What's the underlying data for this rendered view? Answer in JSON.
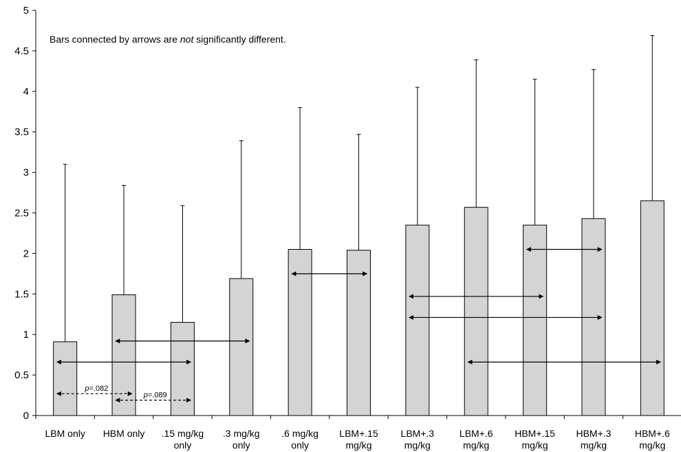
{
  "chart_data": {
    "type": "bar",
    "title": "",
    "xlabel": "",
    "ylabel": "",
    "ylim": [
      0,
      5
    ],
    "yticks": [
      "0",
      "0.5",
      "1",
      "1.5",
      "2",
      "2.5",
      "3",
      "3.5",
      "4",
      "4.5",
      "5"
    ],
    "grid": false,
    "legend": "none",
    "bar_color": "#d4d4d4",
    "edge_color": "#000000",
    "note": {
      "before": "Bars connected by arrows are ",
      "emphasis": "not",
      "after": " significantly different."
    },
    "categories": [
      [
        "LBM only"
      ],
      [
        "HBM only"
      ],
      [
        ".15 mg/kg",
        "only"
      ],
      [
        ".3 mg/kg",
        "only"
      ],
      [
        ".6 mg/kg",
        "only"
      ],
      [
        "LBM+.15",
        "mg/kg"
      ],
      [
        "LBM+.3",
        "mg/kg"
      ],
      [
        "LBM+.6",
        "mg/kg"
      ],
      [
        "HBM+.15",
        "mg/kg"
      ],
      [
        "HBM+.3",
        "mg/kg"
      ],
      [
        "HBM+.6",
        "mg/kg"
      ]
    ],
    "values": [
      0.91,
      1.49,
      1.15,
      1.69,
      2.05,
      2.04,
      2.35,
      2.57,
      2.35,
      2.43,
      2.65
    ],
    "error_upper": [
      3.1,
      2.84,
      2.59,
      3.39,
      3.8,
      3.47,
      4.05,
      4.39,
      4.15,
      4.27,
      4.69
    ],
    "comparisons": [
      {
        "from": 0,
        "to": 2,
        "y": 0.66,
        "style": "solid"
      },
      {
        "from": 1,
        "to": 3,
        "y": 0.92,
        "style": "solid"
      },
      {
        "from": 4,
        "to": 5,
        "y": 1.75,
        "style": "solid"
      },
      {
        "from": 6,
        "to": 8,
        "y": 1.47,
        "style": "solid"
      },
      {
        "from": 6,
        "to": 9,
        "y": 1.21,
        "style": "solid"
      },
      {
        "from": 8,
        "to": 9,
        "y": 2.05,
        "style": "solid"
      },
      {
        "from": 7,
        "to": 10,
        "y": 0.66,
        "style": "solid"
      },
      {
        "from": 0,
        "to": 1,
        "y": 0.27,
        "style": "dashed",
        "p_label": "=.082"
      },
      {
        "from": 1,
        "to": 2,
        "y": 0.19,
        "style": "dashed",
        "p_label": "=.089"
      }
    ],
    "p_symbol": "p"
  }
}
